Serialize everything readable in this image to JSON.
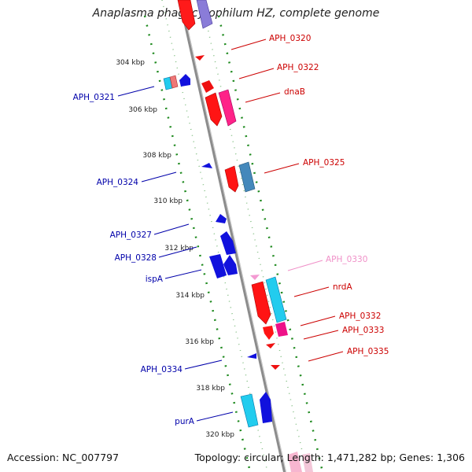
{
  "title": "Anaplasma phagocytophilum HZ, complete genome",
  "footer": {
    "accession": "Accession: NC_007797",
    "stats": "Topology: circular; Length: 1,471,282 bp; Genes: 1,306"
  },
  "kbp_ticks": [
    "304 kbp",
    "306 kbp",
    "308 kbp",
    "310 kbp",
    "312 kbp",
    "314 kbp",
    "316 kbp",
    "318 kbp",
    "320 kbp"
  ],
  "gene_labels": {
    "reverse": [
      "APH_0321",
      "APH_0324",
      "APH_0327",
      "APH_0328",
      "ispA",
      "APH_0334",
      "purA"
    ],
    "forward": [
      "APH_0320",
      "APH_0322",
      "dnaB",
      "APH_0325",
      "APH_0330",
      "nrdA",
      "APH_0332",
      "APH_0333",
      "APH_0335"
    ]
  },
  "colors": {
    "forward_label": "#cc0000",
    "reverse_label": "#0000aa",
    "faded_label": "#f090c8",
    "backbone": "#8c8c8c",
    "dotted_track": "#1f8a1f"
  }
}
